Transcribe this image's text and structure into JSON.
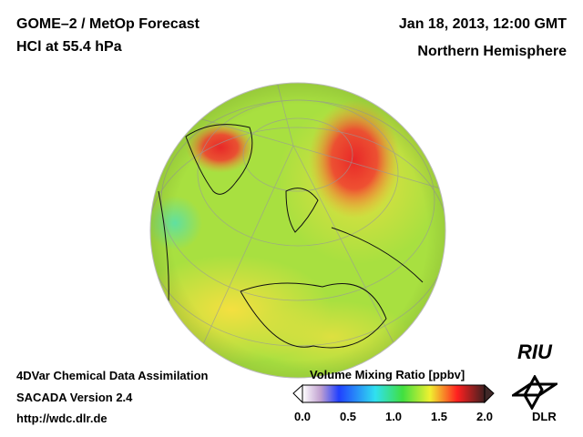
{
  "header": {
    "title_line1": "GOME–2 / MetOp Forecast",
    "title_line2": "HCl at 55.4 hPa",
    "date": "Jan 18, 2013, 12:00 GMT",
    "region": "Northern Hemisphere"
  },
  "footer": {
    "line1": "4DVar Chemical Data Assimilation",
    "line2": "SACADA Version 2.4",
    "link": "http://wdc.dlr.de"
  },
  "colorbar": {
    "title": "Volume Mixing Ratio [ppbv]",
    "min": 0.0,
    "max": 2.0,
    "ticks": [
      "0.0",
      "0.5",
      "1.0",
      "1.5",
      "2.0"
    ],
    "colors": [
      "#ffffff",
      "#c080d0",
      "#2040ff",
      "#30e0ff",
      "#40e040",
      "#f0f030",
      "#ff3030",
      "#402020"
    ]
  },
  "logos": {
    "riu": "RIU",
    "dlr": "DLR"
  }
}
